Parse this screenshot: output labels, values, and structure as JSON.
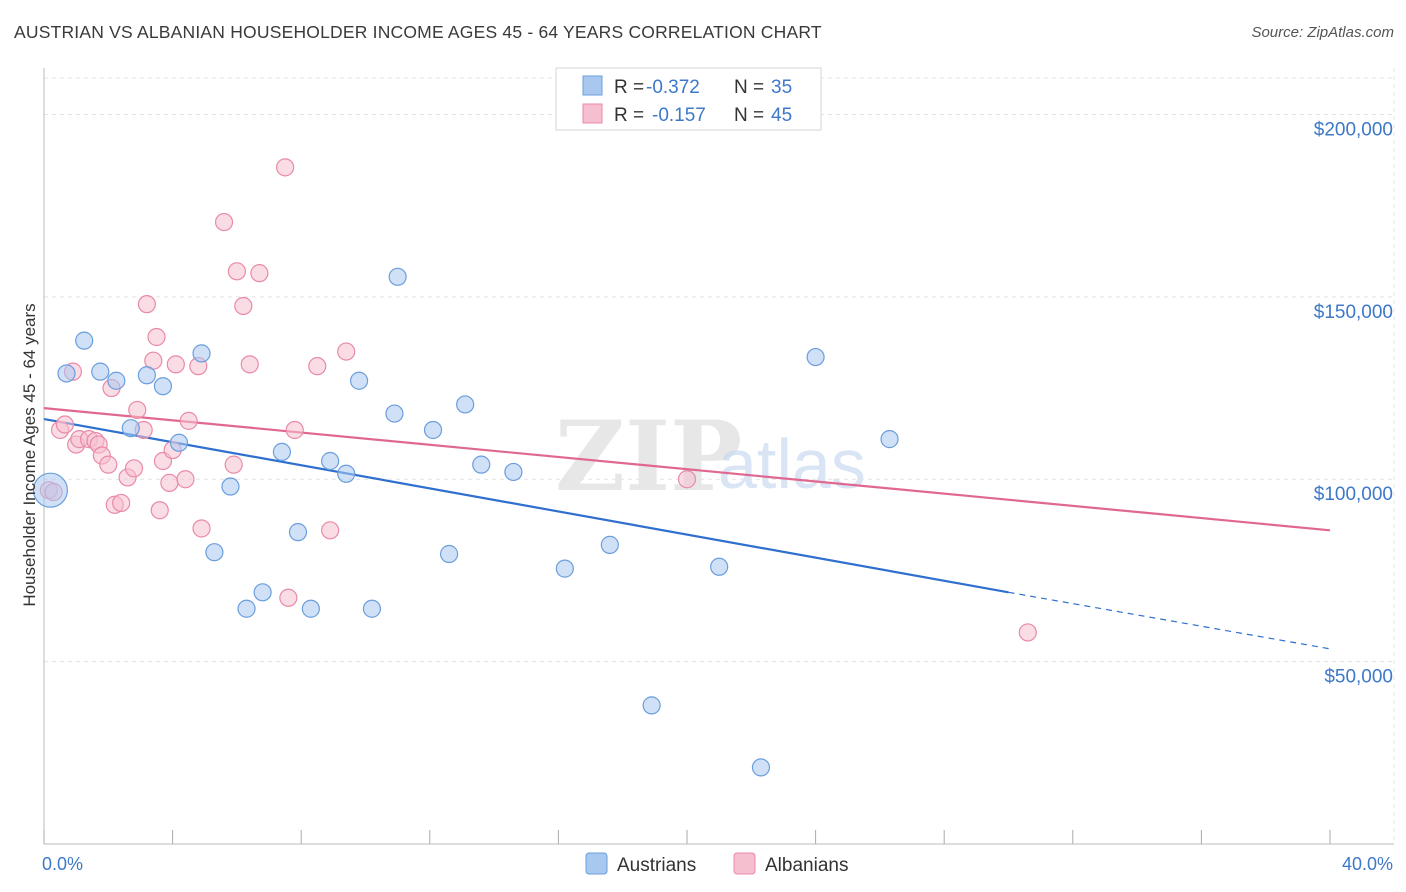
{
  "header": {
    "title": "AUSTRIAN VS ALBANIAN HOUSEHOLDER INCOME AGES 45 - 64 YEARS CORRELATION CHART",
    "source": "Source: ZipAtlas.com"
  },
  "watermark": {
    "zip": "ZIP",
    "atlas": "atlas"
  },
  "legend": {
    "rows": [
      {
        "r_label": "R =",
        "r_value": "-0.372",
        "n_label": "N =",
        "n_value": "35"
      },
      {
        "r_label": "R =",
        "r_value": "-0.157",
        "n_label": "N =",
        "n_value": "45"
      }
    ]
  },
  "colors": {
    "austrians_fill": "#a9c8f0",
    "austrians_stroke": "#6a9edc",
    "austrians_line": "#2f6fce",
    "albanians_fill": "#f6bfd0",
    "albanians_stroke": "#e98aa8",
    "albanians_line": "#e06890",
    "tick_label": "#3d78c9",
    "grid": "#e3e3e3"
  },
  "chart_data": {
    "type": "scatter",
    "title": "AUSTRIAN VS ALBANIAN HOUSEHOLDER INCOME AGES 45 - 64 YEARS CORRELATION CHART",
    "xlabel": "",
    "ylabel": "Householder Income Ages 45 - 64 years",
    "xlim": [
      0,
      40
    ],
    "ylim": [
      0,
      210000
    ],
    "x_tick_labels": [
      "0.0%",
      "40.0%"
    ],
    "y_ticks": [
      50000,
      100000,
      150000,
      200000
    ],
    "y_tick_labels": [
      "$50,000",
      "$100,000",
      "$150,000",
      "$200,000"
    ],
    "grid": true,
    "legend_position": "top-center",
    "series": [
      {
        "name": "Austrians",
        "r": -0.372,
        "n": 35,
        "trend": {
          "x0": 0,
          "y0": 116500,
          "x1": 30.0,
          "y1": 69000,
          "dash_to_x": 40.0,
          "dash_to_y": 53500
        },
        "points": [
          [
            0.2,
            97000
          ],
          [
            0.7,
            129000
          ],
          [
            1.25,
            138000
          ],
          [
            1.75,
            129500
          ],
          [
            2.25,
            127000
          ],
          [
            2.7,
            114000
          ],
          [
            3.2,
            128500
          ],
          [
            3.7,
            125500
          ],
          [
            4.2,
            110000
          ],
          [
            4.9,
            134500
          ],
          [
            5.3,
            80000
          ],
          [
            5.8,
            98000
          ],
          [
            6.3,
            64500
          ],
          [
            6.8,
            69000
          ],
          [
            7.4,
            107500
          ],
          [
            7.9,
            85500
          ],
          [
            8.3,
            64500
          ],
          [
            8.9,
            105000
          ],
          [
            9.4,
            101500
          ],
          [
            9.8,
            127000
          ],
          [
            10.2,
            64500
          ],
          [
            10.9,
            118000
          ],
          [
            11.0,
            155500
          ],
          [
            12.1,
            113500
          ],
          [
            12.6,
            79500
          ],
          [
            13.1,
            120500
          ],
          [
            13.6,
            104000
          ],
          [
            14.6,
            102000
          ],
          [
            16.2,
            75500
          ],
          [
            17.6,
            82000
          ],
          [
            18.9,
            38000
          ],
          [
            21.0,
            76000
          ],
          [
            22.3,
            21000
          ],
          [
            24.0,
            133500
          ],
          [
            26.3,
            111000
          ]
        ]
      },
      {
        "name": "Albanians",
        "r": -0.157,
        "n": 45,
        "trend": {
          "x0": 0,
          "y0": 119500,
          "x1": 40.0,
          "y1": 86000
        },
        "points": [
          [
            0.15,
            97000
          ],
          [
            0.3,
            96500
          ],
          [
            0.5,
            113500
          ],
          [
            0.65,
            115000
          ],
          [
            0.9,
            129500
          ],
          [
            1.0,
            109500
          ],
          [
            1.1,
            111000
          ],
          [
            1.4,
            111000
          ],
          [
            1.6,
            110500
          ],
          [
            1.7,
            109500
          ],
          [
            1.8,
            106500
          ],
          [
            2.0,
            104000
          ],
          [
            2.1,
            125000
          ],
          [
            2.2,
            93000
          ],
          [
            2.4,
            93500
          ],
          [
            2.6,
            100500
          ],
          [
            2.8,
            103000
          ],
          [
            2.9,
            119000
          ],
          [
            3.1,
            113500
          ],
          [
            3.2,
            148000
          ],
          [
            3.4,
            132500
          ],
          [
            3.5,
            139000
          ],
          [
            3.6,
            91500
          ],
          [
            3.7,
            105000
          ],
          [
            3.9,
            99000
          ],
          [
            4.0,
            108000
          ],
          [
            4.1,
            131500
          ],
          [
            4.4,
            100000
          ],
          [
            4.5,
            116000
          ],
          [
            4.8,
            131000
          ],
          [
            4.9,
            86500
          ],
          [
            5.6,
            170500
          ],
          [
            5.9,
            104000
          ],
          [
            6.0,
            157000
          ],
          [
            6.2,
            147500
          ],
          [
            6.4,
            131500
          ],
          [
            6.7,
            156500
          ],
          [
            7.5,
            185500
          ],
          [
            7.6,
            67500
          ],
          [
            7.8,
            113500
          ],
          [
            8.5,
            131000
          ],
          [
            8.9,
            86000
          ],
          [
            9.4,
            135000
          ],
          [
            30.6,
            58000
          ],
          [
            20.0,
            100000
          ]
        ]
      }
    ]
  }
}
